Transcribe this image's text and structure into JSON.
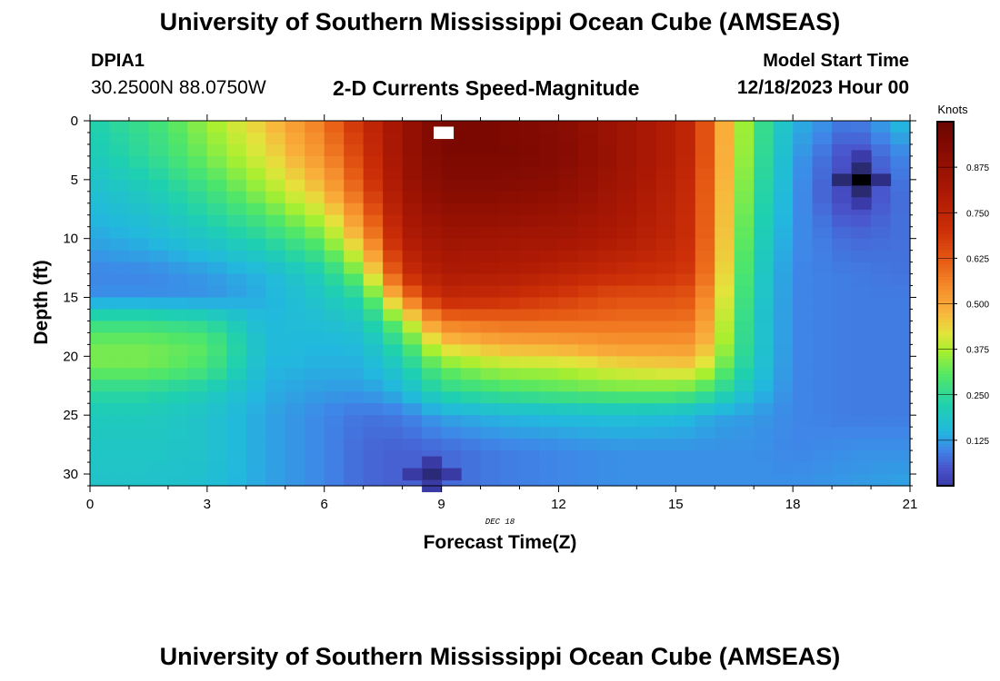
{
  "header": {
    "title": "University of Southern Mississippi Ocean Cube (AMSEAS)",
    "station": "DPIA1",
    "coordinates": "30.2500N  88.0750W",
    "chart_title": "2-D Currents Speed-Magnitude",
    "model_start_label": "Model Start Time",
    "model_start_value": "12/18/2023 Hour 00"
  },
  "footer": {
    "title": "University of Southern Mississippi Ocean Cube (AMSEAS)"
  },
  "chart_data": {
    "type": "heatmap",
    "title": "2-D Currents Speed-Magnitude",
    "xlabel": "Forecast Time(Z)",
    "ylabel": "Depth (ft)",
    "date_annotation": "DEC 18",
    "xlim": [
      0,
      21
    ],
    "ylim": [
      0,
      31
    ],
    "x_ticks": [
      0,
      3,
      6,
      9,
      12,
      15,
      18,
      21
    ],
    "y_ticks": [
      0,
      5,
      10,
      15,
      20,
      25,
      30
    ],
    "colorbar": {
      "label": "Knots",
      "range": [
        0,
        1.0
      ],
      "ticks": [
        0.125,
        0.25,
        0.375,
        0.5,
        0.625,
        0.75,
        0.875
      ],
      "tick_labels": [
        "0.125",
        "0.250",
        "0.375",
        "0.500",
        "0.625",
        "0.750",
        "0.875"
      ]
    },
    "time_step_hours": 0.5,
    "depth_step_ft": 1,
    "key_times": [
      0,
      1.5,
      3,
      4.5,
      6,
      7,
      8,
      9,
      10.5,
      12,
      13.5,
      15,
      15.5,
      16,
      17,
      18,
      19.5,
      21
    ],
    "key_depths": [
      0,
      3,
      6,
      10,
      13,
      15,
      17,
      19,
      21,
      23,
      25,
      28,
      31
    ],
    "speed_knots": [
      [
        0.22,
        0.27,
        0.36,
        0.46,
        0.58,
        0.72,
        0.86,
        0.96,
        0.95,
        0.92,
        0.85,
        0.78,
        0.72,
        0.55,
        0.3,
        0.15,
        0.08,
        0.17
      ],
      [
        0.2,
        0.25,
        0.33,
        0.42,
        0.54,
        0.68,
        0.86,
        0.95,
        0.95,
        0.93,
        0.86,
        0.78,
        0.72,
        0.55,
        0.29,
        0.13,
        0.03,
        0.11
      ],
      [
        0.17,
        0.2,
        0.27,
        0.36,
        0.47,
        0.63,
        0.84,
        0.92,
        0.92,
        0.9,
        0.84,
        0.76,
        0.7,
        0.54,
        0.27,
        0.12,
        0.01,
        0.09
      ],
      [
        0.13,
        0.15,
        0.19,
        0.24,
        0.33,
        0.5,
        0.78,
        0.85,
        0.84,
        0.83,
        0.8,
        0.74,
        0.69,
        0.53,
        0.24,
        0.11,
        0.07,
        0.08
      ],
      [
        0.1,
        0.1,
        0.12,
        0.15,
        0.22,
        0.35,
        0.7,
        0.8,
        0.79,
        0.76,
        0.72,
        0.7,
        0.67,
        0.51,
        0.22,
        0.1,
        0.09,
        0.08
      ],
      [
        0.11,
        0.11,
        0.11,
        0.14,
        0.19,
        0.24,
        0.55,
        0.74,
        0.72,
        0.68,
        0.64,
        0.64,
        0.62,
        0.48,
        0.21,
        0.1,
        0.09,
        0.09
      ],
      [
        0.26,
        0.26,
        0.24,
        0.15,
        0.17,
        0.19,
        0.36,
        0.58,
        0.6,
        0.6,
        0.59,
        0.59,
        0.58,
        0.45,
        0.2,
        0.1,
        0.09,
        0.09
      ],
      [
        0.33,
        0.33,
        0.31,
        0.16,
        0.15,
        0.16,
        0.26,
        0.44,
        0.49,
        0.5,
        0.53,
        0.53,
        0.53,
        0.42,
        0.2,
        0.1,
        0.09,
        0.09
      ],
      [
        0.33,
        0.33,
        0.29,
        0.15,
        0.14,
        0.14,
        0.2,
        0.32,
        0.37,
        0.38,
        0.42,
        0.44,
        0.44,
        0.36,
        0.19,
        0.1,
        0.09,
        0.09
      ],
      [
        0.24,
        0.24,
        0.21,
        0.14,
        0.12,
        0.12,
        0.15,
        0.24,
        0.28,
        0.3,
        0.32,
        0.32,
        0.3,
        0.26,
        0.16,
        0.1,
        0.09,
        0.09
      ],
      [
        0.2,
        0.2,
        0.18,
        0.13,
        0.1,
        0.08,
        0.09,
        0.13,
        0.15,
        0.16,
        0.17,
        0.16,
        0.15,
        0.13,
        0.12,
        0.1,
        0.09,
        0.09
      ],
      [
        0.19,
        0.19,
        0.18,
        0.13,
        0.1,
        0.07,
        0.06,
        0.07,
        0.09,
        0.1,
        0.11,
        0.11,
        0.11,
        0.11,
        0.11,
        0.1,
        0.11,
        0.11
      ],
      [
        0.18,
        0.18,
        0.17,
        0.13,
        0.1,
        0.07,
        0.06,
        0.07,
        0.09,
        0.1,
        0.11,
        0.11,
        0.11,
        0.11,
        0.11,
        0.11,
        0.12,
        0.13
      ]
    ],
    "colors": {
      "0.00": "#3a3aa8",
      "0.05": "#4a54cc",
      "0.10": "#3f86e8",
      "0.15": "#22b8de",
      "0.22": "#1fd0b0",
      "0.30": "#4ee66a",
      "0.37": "#a8ef30",
      "0.42": "#e4e43c",
      "0.48": "#f9b23c",
      "0.55": "#f58a2a",
      "0.62": "#e65a14",
      "0.70": "#cd3008",
      "0.80": "#ae1a04",
      "0.90": "#8e0e02",
      "1.00": "#6a0501"
    }
  }
}
